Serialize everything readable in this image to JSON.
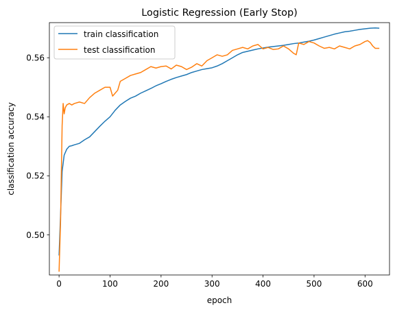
{
  "chart_data": {
    "type": "line",
    "title": "Logistic Regression (Early Stop)",
    "xlabel": "epoch",
    "ylabel": "classification accuracy",
    "xlim": [
      -19,
      648
    ],
    "ylim": [
      0.4864,
      0.5719
    ],
    "xticks": [
      0,
      100,
      200,
      300,
      400,
      500,
      600
    ],
    "xtick_labels": [
      "0",
      "100",
      "200",
      "300",
      "400",
      "500",
      "600"
    ],
    "yticks": [
      0.5,
      0.52,
      0.54,
      0.56
    ],
    "ytick_labels": [
      "0.50",
      "0.52",
      "0.54",
      "0.56"
    ],
    "grid": false,
    "legend_position": "top-left",
    "series": [
      {
        "name": "train classification",
        "color": "#1f77b4",
        "x": [
          0,
          3,
          6,
          10,
          15,
          20,
          25,
          30,
          40,
          50,
          60,
          70,
          80,
          90,
          100,
          110,
          120,
          130,
          140,
          150,
          160,
          170,
          180,
          190,
          200,
          210,
          220,
          230,
          240,
          250,
          260,
          270,
          280,
          290,
          300,
          310,
          320,
          330,
          340,
          350,
          360,
          370,
          380,
          390,
          400,
          410,
          420,
          430,
          440,
          450,
          460,
          470,
          480,
          490,
          500,
          510,
          520,
          530,
          540,
          550,
          560,
          570,
          580,
          590,
          600,
          610,
          620,
          628
        ],
        "y": [
          0.493,
          0.507,
          0.5215,
          0.527,
          0.529,
          0.53,
          0.5302,
          0.5305,
          0.531,
          0.5322,
          0.5332,
          0.535,
          0.5368,
          0.5385,
          0.54,
          0.5422,
          0.544,
          0.5452,
          0.5463,
          0.547,
          0.548,
          0.5488,
          0.5496,
          0.5505,
          0.5512,
          0.552,
          0.5527,
          0.5533,
          0.5538,
          0.5543,
          0.555,
          0.5555,
          0.556,
          0.5563,
          0.5566,
          0.5572,
          0.558,
          0.559,
          0.56,
          0.561,
          0.5618,
          0.5622,
          0.5626,
          0.563,
          0.5633,
          0.5636,
          0.5638,
          0.564,
          0.5642,
          0.5645,
          0.5648,
          0.565,
          0.5653,
          0.5656,
          0.566,
          0.5665,
          0.567,
          0.5675,
          0.568,
          0.5684,
          0.5688,
          0.569,
          0.5693,
          0.5696,
          0.5698,
          0.57,
          0.5701,
          0.57
        ]
      },
      {
        "name": "test classification",
        "color": "#ff7f0e",
        "x": [
          0,
          3,
          6,
          8,
          10,
          12,
          15,
          20,
          25,
          30,
          40,
          50,
          60,
          70,
          80,
          90,
          100,
          105,
          110,
          115,
          120,
          130,
          140,
          150,
          160,
          170,
          180,
          190,
          200,
          210,
          220,
          230,
          240,
          250,
          260,
          270,
          280,
          290,
          300,
          310,
          320,
          330,
          340,
          350,
          360,
          370,
          380,
          390,
          400,
          410,
          420,
          430,
          440,
          450,
          460,
          465,
          470,
          480,
          490,
          500,
          510,
          520,
          530,
          540,
          550,
          560,
          570,
          580,
          590,
          600,
          605,
          610,
          615,
          620,
          628
        ],
        "y": [
          0.4875,
          0.505,
          0.537,
          0.5445,
          0.541,
          0.543,
          0.544,
          0.5445,
          0.544,
          0.5445,
          0.545,
          0.5445,
          0.5465,
          0.548,
          0.549,
          0.55,
          0.55,
          0.547,
          0.548,
          0.549,
          0.552,
          0.553,
          0.554,
          0.5545,
          0.555,
          0.556,
          0.557,
          0.5565,
          0.557,
          0.5572,
          0.5562,
          0.5575,
          0.557,
          0.556,
          0.5568,
          0.558,
          0.5572,
          0.559,
          0.56,
          0.561,
          0.5605,
          0.561,
          0.5625,
          0.563,
          0.5635,
          0.563,
          0.564,
          0.5645,
          0.563,
          0.5635,
          0.5628,
          0.563,
          0.564,
          0.563,
          0.5615,
          0.561,
          0.565,
          0.5645,
          0.5655,
          0.565,
          0.564,
          0.5632,
          0.5635,
          0.563,
          0.564,
          0.5635,
          0.563,
          0.564,
          0.5645,
          0.5655,
          0.5658,
          0.5652,
          0.564,
          0.5632,
          0.5632
        ]
      }
    ]
  }
}
